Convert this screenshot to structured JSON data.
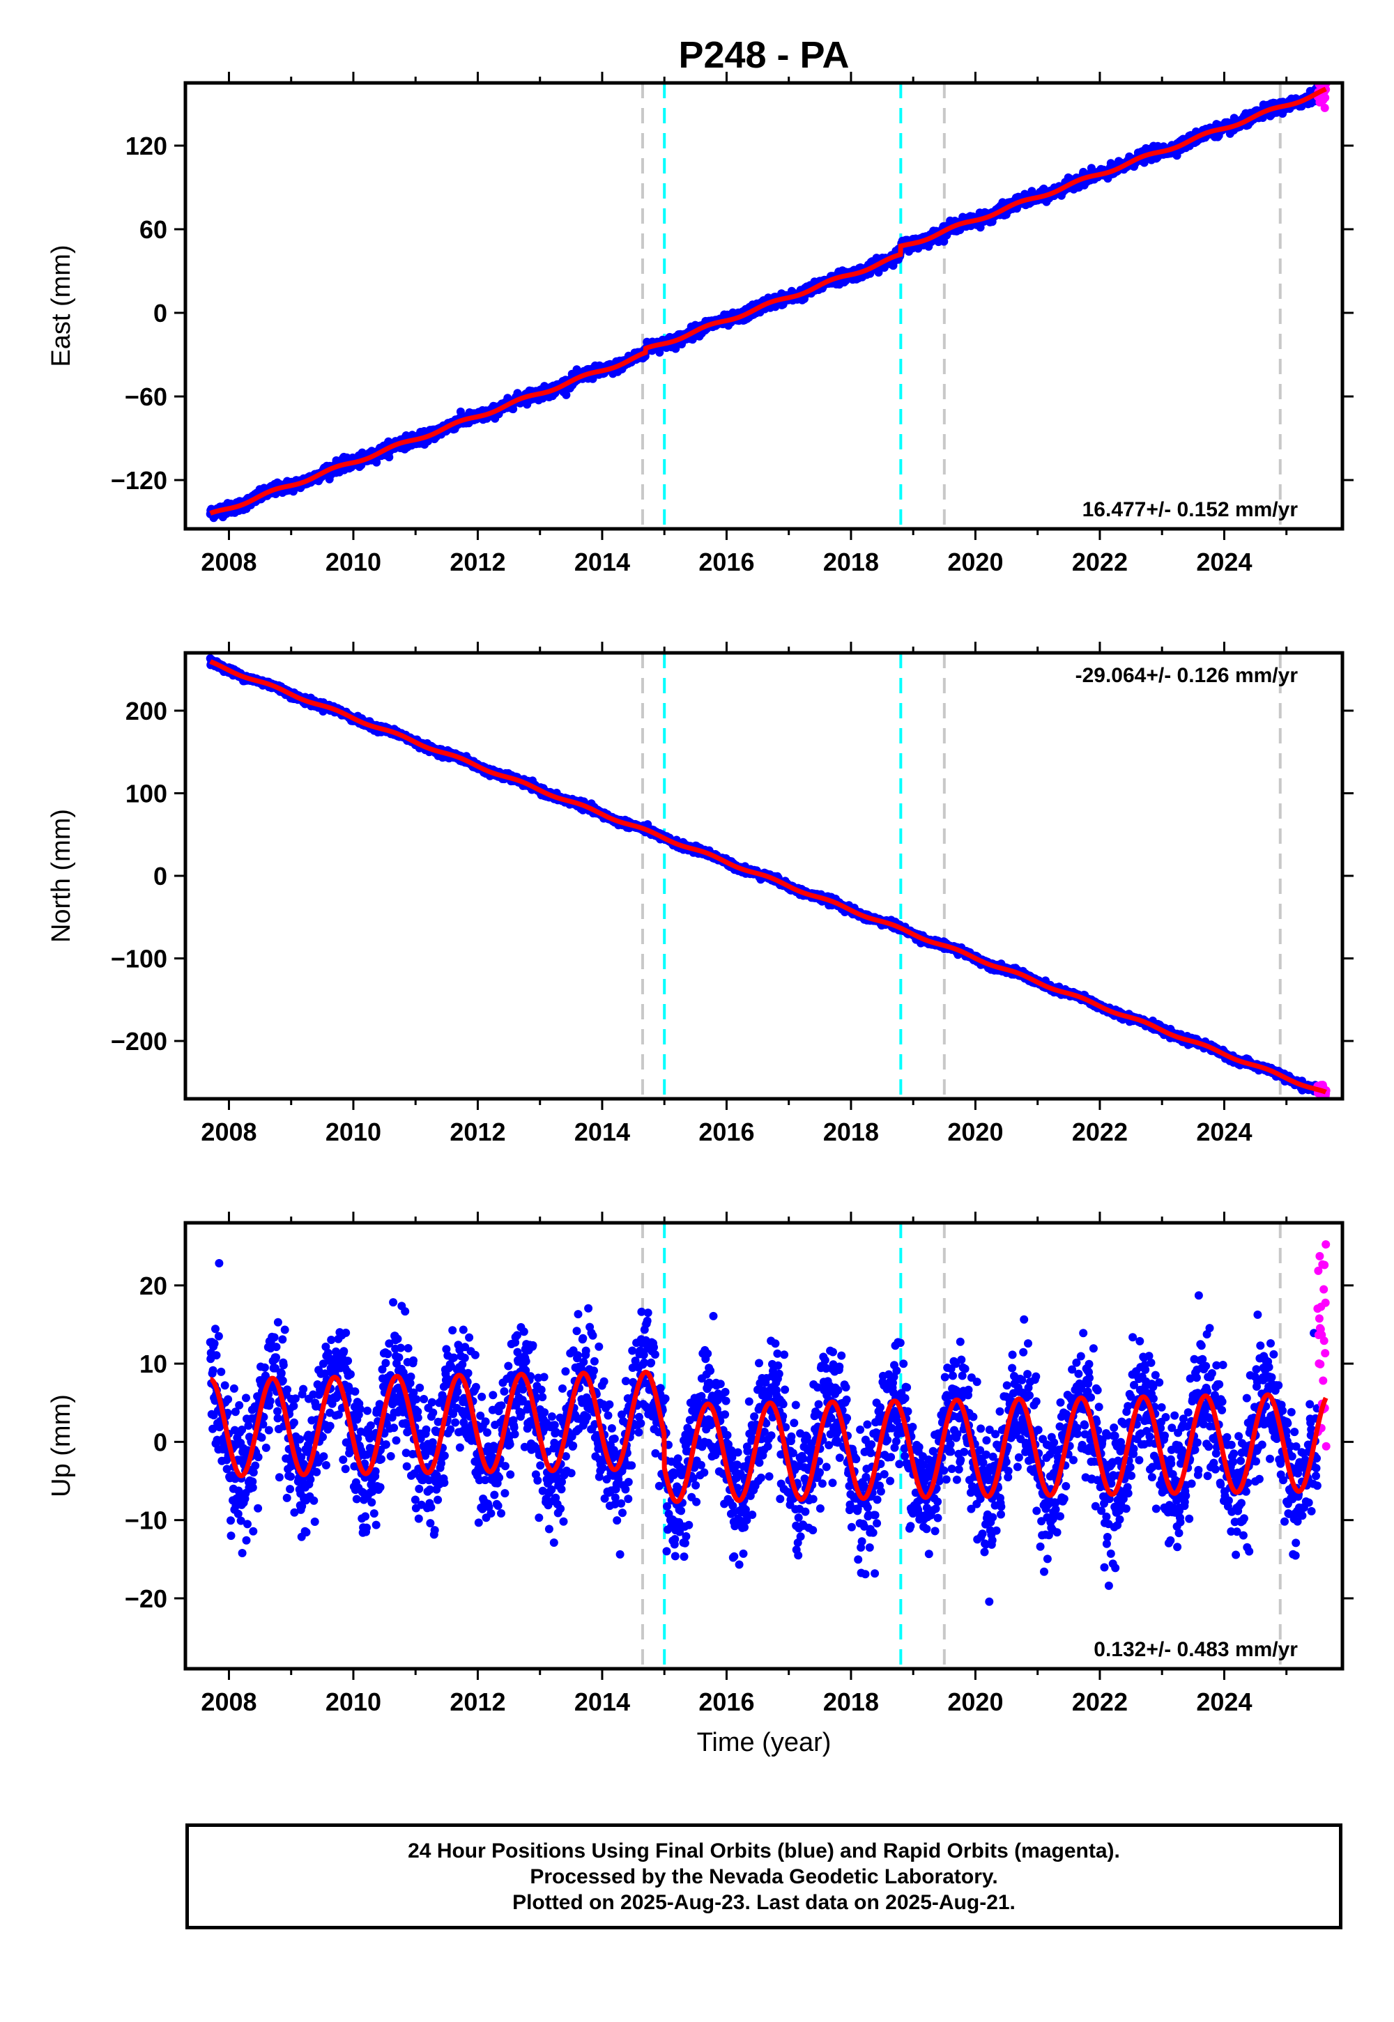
{
  "title": "P248 - PA",
  "colors": {
    "final_points": "#0000ff",
    "rapid_points": "#ff00ff",
    "model": "#ff0000",
    "equipment_change": "#c8c8c8",
    "earthquake": "#00ffff"
  },
  "chart_data": [
    {
      "type": "scatter",
      "component": "East",
      "ylabel": "East (mm)",
      "xlim": [
        2007.3,
        2025.9
      ],
      "ylim": [
        -155,
        165
      ],
      "yticks": [
        -120,
        -60,
        0,
        60,
        120
      ],
      "yticklabels": [
        "−120",
        "−60",
        "0",
        "60",
        "120"
      ],
      "xticks": [
        2008,
        2010,
        2012,
        2014,
        2016,
        2018,
        2020,
        2022,
        2024
      ],
      "rate_label": "16.477+/- 0.152 mm/yr",
      "rate_position": "bottom-right",
      "model": {
        "x0": 2007.7,
        "y0": -145,
        "rate": 16.48,
        "annual_amplitude": 1.2,
        "offsets": [
          [
            2014.7,
            3
          ],
          [
            2018.8,
            6
          ]
        ]
      },
      "scatter": 2.0
    },
    {
      "type": "scatter",
      "component": "North",
      "ylabel": "North (mm)",
      "xlim": [
        2007.3,
        2025.9
      ],
      "ylim": [
        -270,
        270
      ],
      "yticks": [
        -200,
        -100,
        0,
        100,
        200
      ],
      "yticklabels": [
        "−200",
        "−100",
        "0",
        "100",
        "200"
      ],
      "xticks": [
        2008,
        2010,
        2012,
        2014,
        2016,
        2018,
        2020,
        2022,
        2024
      ],
      "rate_label": "-29.064+/- 0.126 mm/yr",
      "rate_position": "top-right",
      "model": {
        "x0": 2007.7,
        "y0": 258,
        "rate": -29.06,
        "annual_amplitude": 1.5,
        "offsets": []
      },
      "scatter": 2.0
    },
    {
      "type": "scatter",
      "component": "Up",
      "ylabel": "Up (mm)",
      "xlabel": "Time (year)",
      "xlim": [
        2007.3,
        2025.9
      ],
      "ylim": [
        -29,
        28
      ],
      "yticks": [
        -20,
        -10,
        0,
        10,
        20
      ],
      "yticklabels": [
        "−20",
        "−10",
        "0",
        "10",
        "20"
      ],
      "xticks": [
        2008,
        2010,
        2012,
        2014,
        2016,
        2018,
        2020,
        2022,
        2024
      ],
      "rate_label": "0.132+/- 0.483 mm/yr",
      "rate_position": "bottom-right",
      "model": {
        "x0": 2007.7,
        "y0": 1.8,
        "rate": 0.13,
        "annual_amplitude": 6.2,
        "offsets": [
          [
            2015.0,
            -4.2
          ]
        ]
      },
      "scatter": 4.0
    }
  ],
  "events": {
    "equipment_change": [
      2014.65,
      2019.5,
      2024.9
    ],
    "earthquake": [
      2015.0,
      2018.8
    ]
  },
  "data_span": {
    "start": 2007.7,
    "end": 2025.64,
    "rapid_start": 2025.5
  },
  "footer": {
    "line1": "24 Hour Positions Using Final Orbits (blue) and Rapid Orbits (magenta).",
    "line2": "Processed by the Nevada Geodetic Laboratory.",
    "line3": "Plotted on 2025-Aug-23. Last data on 2025-Aug-21."
  }
}
